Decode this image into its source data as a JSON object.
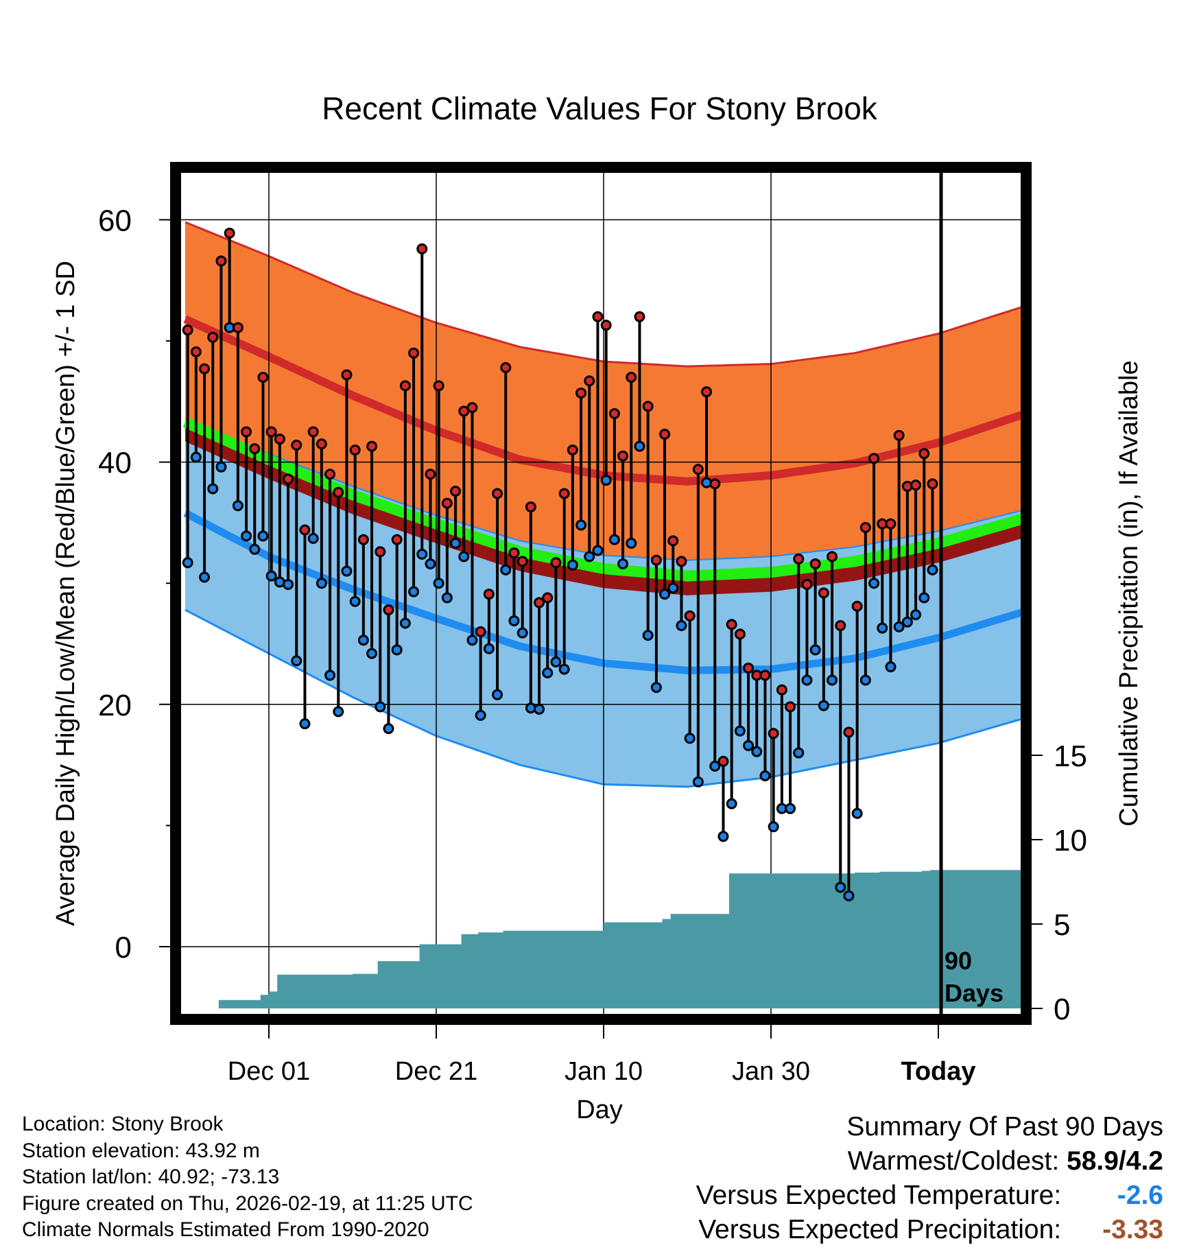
{
  "chart_data": {
    "type": "line",
    "title": "Recent Climate Values For Stony Brook",
    "xlabel": "Day",
    "ylabel": "Average Daily High/Low/Mean (Red/Blue/Green) +/- 1 SD",
    "y2label": "Cumulative Precipitation (in), If Available",
    "ylim": [
      -6,
      65
    ],
    "y_ticks": [
      0,
      20,
      40,
      60
    ],
    "y2lim": [
      0,
      50
    ],
    "y2_ticks": [
      0,
      5,
      10,
      15
    ],
    "xlim": [
      0,
      100
    ],
    "x_ticks": [
      {
        "day": 10,
        "label": "Dec 01"
      },
      {
        "day": 30,
        "label": "Dec 21"
      },
      {
        "day": 50,
        "label": "Jan 10"
      },
      {
        "day": 70,
        "label": "Jan 30"
      },
      {
        "day": 90,
        "label": "Today"
      }
    ],
    "today_marker": {
      "day": 90,
      "label_line1": "90",
      "label_line2": "Days"
    },
    "normals": {
      "days": [
        0,
        10,
        20,
        30,
        40,
        50,
        60,
        70,
        80,
        90,
        100
      ],
      "high_mean": [
        51.8,
        48.7,
        45.5,
        42.6,
        40.2,
        38.9,
        38.4,
        38.9,
        39.9,
        41.6,
        43.9
      ],
      "high_plus_sd": [
        59.8,
        57.0,
        54.0,
        51.5,
        49.5,
        48.3,
        47.9,
        48.1,
        49.0,
        50.6,
        52.8
      ],
      "high_minus_sd": [
        43.3,
        40.7,
        38.0,
        35.6,
        33.5,
        32.3,
        31.9,
        32.2,
        33.0,
        34.3,
        36.0
      ],
      "mean_mean": [
        43.3,
        40.2,
        37.3,
        34.9,
        32.6,
        31.2,
        30.6,
        30.9,
        31.8,
        33.3,
        35.3
      ],
      "low_mean": [
        35.8,
        32.2,
        29.5,
        27.1,
        24.8,
        23.4,
        22.8,
        22.9,
        23.8,
        25.5,
        27.6
      ],
      "low_plus_sd": [
        43.3,
        40.7,
        38.0,
        35.6,
        33.5,
        32.3,
        31.9,
        32.2,
        33.0,
        34.3,
        36.0
      ],
      "low_minus_sd": [
        27.8,
        24.2,
        20.6,
        17.4,
        15.0,
        13.4,
        13.2,
        14.0,
        15.4,
        16.8,
        18.8
      ]
    },
    "series": [
      {
        "name": "Daily High",
        "color": "#d12a2a",
        "values": [
          50.9,
          49.1,
          47.7,
          50.3,
          56.6,
          58.9,
          51.1,
          42.5,
          41.1,
          47.0,
          42.5,
          41.9,
          38.6,
          41.4,
          34.4,
          42.5,
          41.5,
          39.0,
          37.5,
          47.2,
          41.0,
          33.6,
          41.3,
          32.6,
          27.8,
          33.6,
          46.3,
          49.0,
          57.6,
          39.0,
          46.3,
          36.6,
          37.6,
          44.2,
          44.5,
          26.0,
          29.1,
          37.4,
          47.8,
          32.5,
          31.8,
          36.3,
          28.4,
          28.8,
          31.7,
          37.4,
          41.0,
          45.7,
          46.7,
          52.0,
          51.3,
          44.0,
          40.5,
          47.0,
          52.0,
          44.6,
          31.9,
          42.3,
          33.5,
          31.8,
          27.3,
          39.4,
          45.8,
          38.2,
          15.3,
          26.6,
          25.8,
          23.0,
          22.4,
          22.4,
          17.6,
          21.2,
          19.8,
          32.0,
          29.9,
          31.6,
          29.2,
          32.2,
          26.5,
          17.7,
          28.1,
          34.6,
          40.3,
          34.9,
          34.9,
          42.2,
          38.0,
          38.1,
          40.7,
          38.2
        ]
      },
      {
        "name": "Daily Low",
        "color": "#1f7fe0",
        "values": [
          31.7,
          40.4,
          30.5,
          37.8,
          39.6,
          51.1,
          36.4,
          33.9,
          32.8,
          33.9,
          30.6,
          30.1,
          29.9,
          23.6,
          18.4,
          33.7,
          30.0,
          22.4,
          19.4,
          31.0,
          28.5,
          25.3,
          24.2,
          19.8,
          18.0,
          24.5,
          26.7,
          29.3,
          32.4,
          31.6,
          30.0,
          28.8,
          33.3,
          32.2,
          25.3,
          19.1,
          24.6,
          20.8,
          31.1,
          26.9,
          25.9,
          19.7,
          19.6,
          22.6,
          23.5,
          22.9,
          31.5,
          34.8,
          32.2,
          32.7,
          38.5,
          33.6,
          31.6,
          33.3,
          41.3,
          25.7,
          21.4,
          29.1,
          29.6,
          26.5,
          17.2,
          13.6,
          38.3,
          14.9,
          9.1,
          11.8,
          17.8,
          16.6,
          16.1,
          14.1,
          9.9,
          11.4,
          11.4,
          16.0,
          22.0,
          24.5,
          19.9,
          22.0,
          4.9,
          4.2,
          11.0,
          22.0,
          30.0,
          26.3,
          23.1,
          26.4,
          26.8,
          27.4,
          28.8,
          31.1
        ]
      },
      {
        "name": "Cumulative Precipitation",
        "color": "#4a9aa5",
        "values": [
          0.0,
          0.0,
          0.0,
          0.0,
          0.5,
          0.5,
          0.5,
          0.5,
          0.5,
          0.8,
          1.0,
          2.0,
          2.0,
          2.0,
          2.0,
          2.0,
          2.0,
          2.0,
          2.0,
          2.0,
          2.05,
          2.05,
          2.05,
          2.8,
          2.8,
          2.8,
          2.8,
          2.8,
          3.8,
          3.8,
          3.8,
          3.8,
          3.8,
          4.4,
          4.4,
          4.5,
          4.5,
          4.5,
          4.6,
          4.6,
          4.6,
          4.6,
          4.6,
          4.6,
          4.6,
          4.6,
          4.6,
          4.6,
          4.6,
          4.6,
          5.1,
          5.1,
          5.1,
          5.1,
          5.1,
          5.1,
          5.1,
          5.3,
          5.6,
          5.6,
          5.6,
          5.6,
          5.6,
          5.6,
          5.6,
          8.0,
          8.0,
          8.0,
          8.0,
          8.0,
          8.0,
          8.0,
          8.0,
          8.0,
          8.0,
          8.0,
          8.0,
          8.0,
          8.0,
          8.0,
          8.05,
          8.05,
          8.05,
          8.1,
          8.1,
          8.1,
          8.1,
          8.1,
          8.15,
          8.2,
          8.2
        ]
      }
    ]
  },
  "info": {
    "location": "Location: Stony Brook",
    "elevation": "Station elevation: 43.92 m",
    "latlon": "Station lat/lon: 40.92; -73.13",
    "created": "Figure created on Thu, 2026-02-19, at 11:25 UTC",
    "normals": "Climate Normals Estimated From 1990-2020"
  },
  "summary": {
    "heading": "Summary Of Past 90 Days",
    "warm_cold_label": "Warmest/Coldest:",
    "warm_cold_value": "58.9/4.2",
    "temp_label": "Versus Expected Temperature:",
    "temp_value": "-2.6",
    "temp_color": "#1f7fe0",
    "precip_label": "Versus Expected Precipitation:",
    "precip_value": "-3.33",
    "precip_color": "#a0522d"
  },
  "colors": {
    "high_band": "#f47a33",
    "high_line": "#d12a2a",
    "low_band": "#85c1e9",
    "low_line": "#1f8cf0",
    "mean_line": "#22ee11",
    "mean_dark": "#961414",
    "precip": "#4a9aa5"
  }
}
